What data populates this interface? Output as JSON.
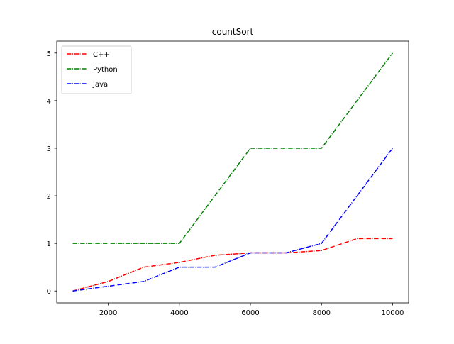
{
  "chart_data": {
    "type": "line",
    "title": "countSort",
    "xlabel": "",
    "ylabel": "",
    "xlim": [
      550,
      10450
    ],
    "ylim": [
      -0.25,
      5.25
    ],
    "xticks": [
      2000,
      4000,
      6000,
      8000,
      10000
    ],
    "yticks": [
      0,
      1,
      2,
      3,
      4,
      5
    ],
    "grid": false,
    "legend_position": "upper-left",
    "x": [
      1000,
      2000,
      3000,
      4000,
      5000,
      6000,
      7000,
      8000,
      9000,
      10000
    ],
    "series": [
      {
        "name": "C++",
        "color": "#ff0000",
        "linestyle": "dash-dot",
        "values": [
          0,
          0.2,
          0.5,
          0.6,
          0.75,
          0.8,
          0.8,
          0.85,
          1.1,
          1.1
        ]
      },
      {
        "name": "Python",
        "color": "#008000",
        "linestyle": "dash-dot",
        "values": [
          1,
          1,
          1,
          1,
          2,
          3,
          3,
          3,
          4,
          5
        ]
      },
      {
        "name": "Java",
        "color": "#0000ff",
        "linestyle": "dash-dot",
        "values": [
          0,
          0.1,
          0.2,
          0.5,
          0.5,
          0.8,
          0.8,
          1,
          2,
          3
        ]
      }
    ]
  }
}
